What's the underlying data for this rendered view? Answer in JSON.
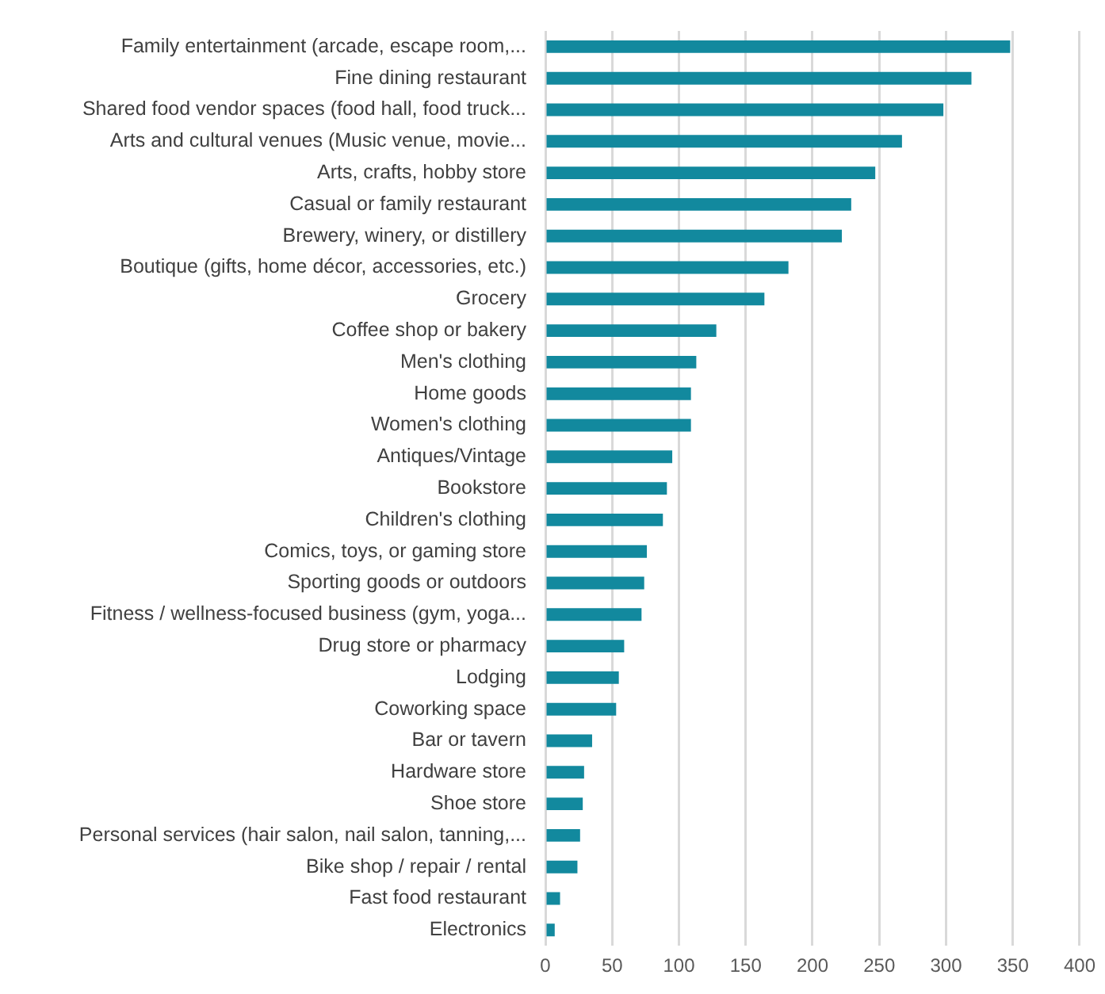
{
  "chart_data": {
    "type": "bar",
    "orientation": "horizontal",
    "categories": [
      "Family entertainment (arcade, escape room,...",
      "Fine dining restaurant",
      "Shared food vendor spaces (food hall, food truck...",
      "Arts and cultural venues (Music venue, movie...",
      "Arts, crafts, hobby store",
      "Casual or family restaurant",
      "Brewery, winery, or distillery",
      "Boutique (gifts, home décor, accessories, etc.)",
      "Grocery",
      "Coffee shop or bakery",
      "Men's clothing",
      "Home goods",
      "Women's clothing",
      "Antiques/Vintage",
      "Bookstore",
      "Children's clothing",
      "Comics, toys, or gaming store",
      "Sporting goods or outdoors",
      "Fitness / wellness-focused business (gym, yoga...",
      "Drug store or pharmacy",
      "Lodging",
      "Coworking space",
      "Bar or tavern",
      "Hardware store",
      "Shoe store",
      "Personal services (hair salon, nail salon, tanning,...",
      "Bike shop / repair / rental",
      "Fast food restaurant",
      "Electronics"
    ],
    "values": [
      348,
      319,
      298,
      267,
      247,
      229,
      222,
      182,
      164,
      128,
      113,
      109,
      109,
      95,
      91,
      88,
      76,
      74,
      72,
      59,
      55,
      53,
      35,
      29,
      28,
      26,
      24,
      11,
      7
    ],
    "color": "#12899e",
    "xlim": [
      0,
      400
    ],
    "xticks": [
      0,
      50,
      100,
      150,
      200,
      250,
      300,
      350,
      400
    ],
    "grid": "x",
    "legend": false
  }
}
